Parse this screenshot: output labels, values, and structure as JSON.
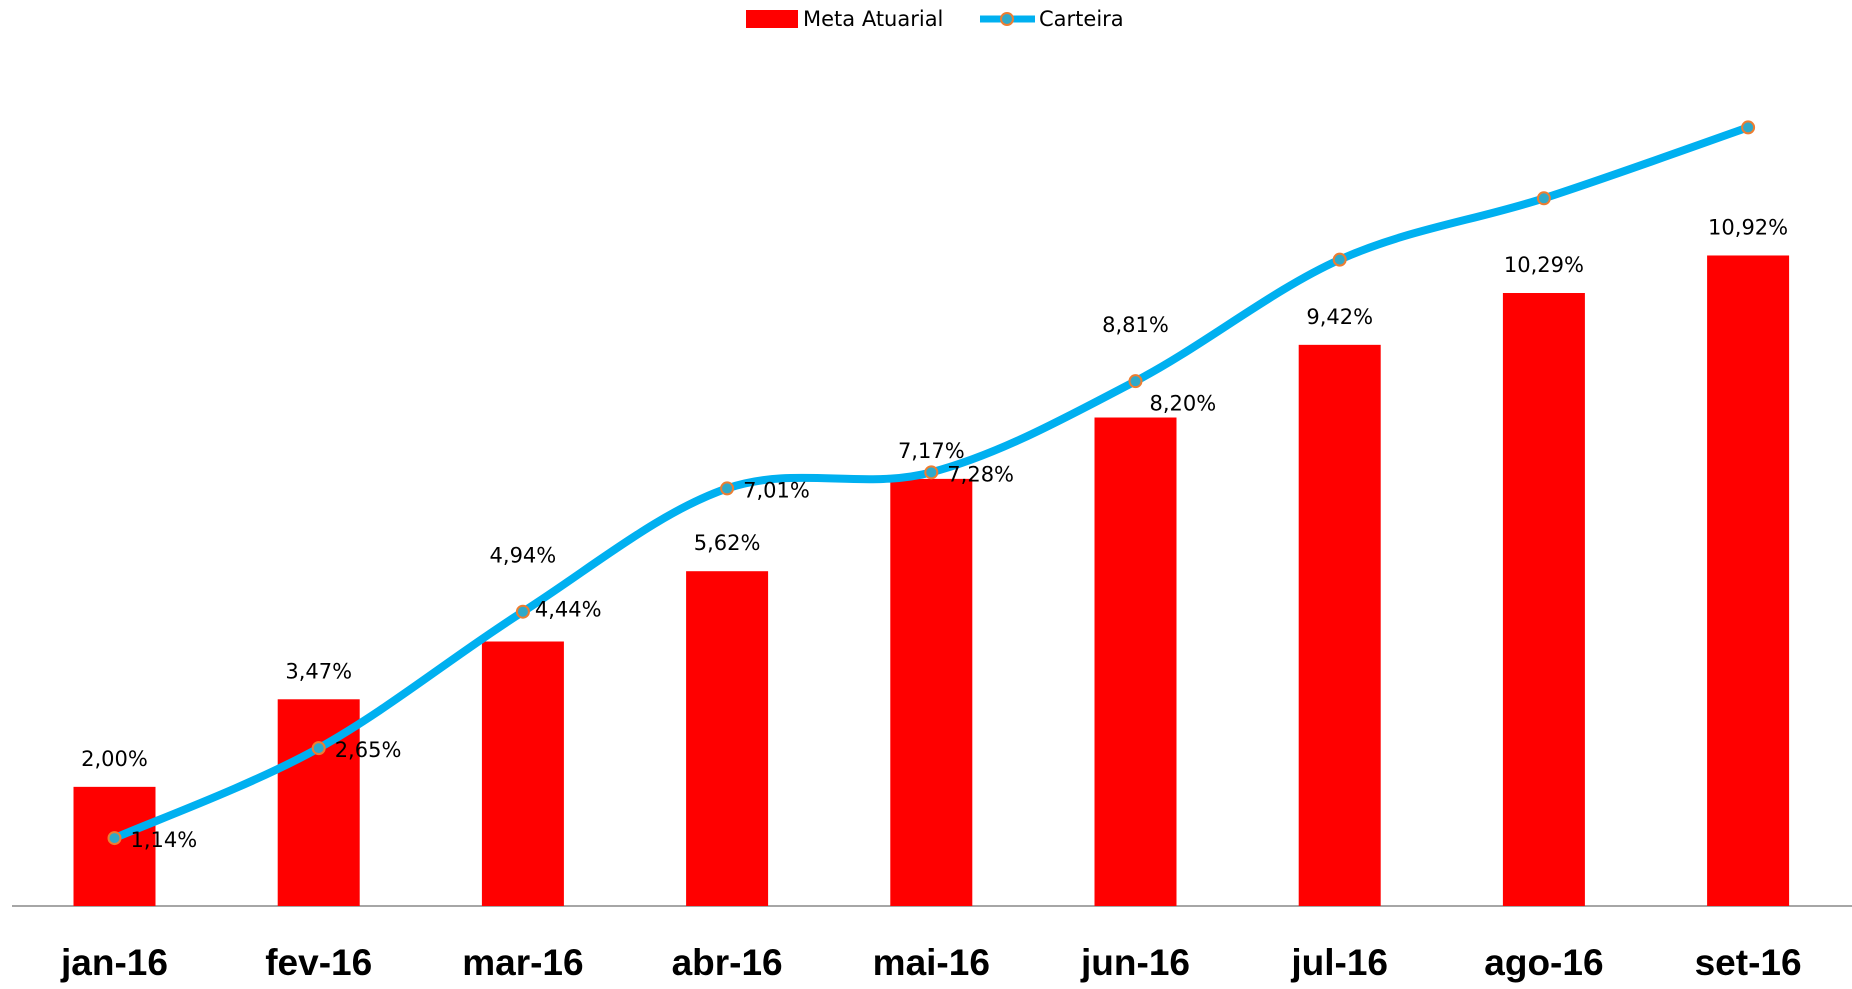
{
  "chart_data": {
    "type": "bar_line",
    "categories": [
      "jan-16",
      "fev-16",
      "mar-16",
      "abr-16",
      "mai-16",
      "jun-16",
      "jul-16",
      "ago-16",
      "set-16"
    ],
    "series": [
      {
        "name": "Meta Atuarial",
        "type": "bar",
        "color": "#ff0000",
        "values": [
          2.0,
          3.47,
          4.44,
          5.62,
          7.17,
          8.2,
          9.42,
          10.29,
          10.92
        ],
        "value_labels": [
          "2,00%",
          "3,47%",
          "4,44%",
          "5,62%",
          "7,17%",
          "8,20%",
          "9,42%",
          "10,29%",
          "10,92%"
        ]
      },
      {
        "name": "Carteira",
        "type": "line",
        "color": "#00b0f0",
        "marker_color": "#ed7d31",
        "values": [
          1.14,
          2.65,
          4.94,
          7.01,
          7.28,
          8.81,
          10.85,
          11.88,
          13.07
        ],
        "value_labels": [
          "1,14%",
          "2,65%",
          "4,94%",
          "7,01%",
          "7,28%",
          "8,81%",
          null,
          null,
          null
        ]
      }
    ],
    "ylim": [
      0,
      14
    ],
    "legend": "top"
  }
}
